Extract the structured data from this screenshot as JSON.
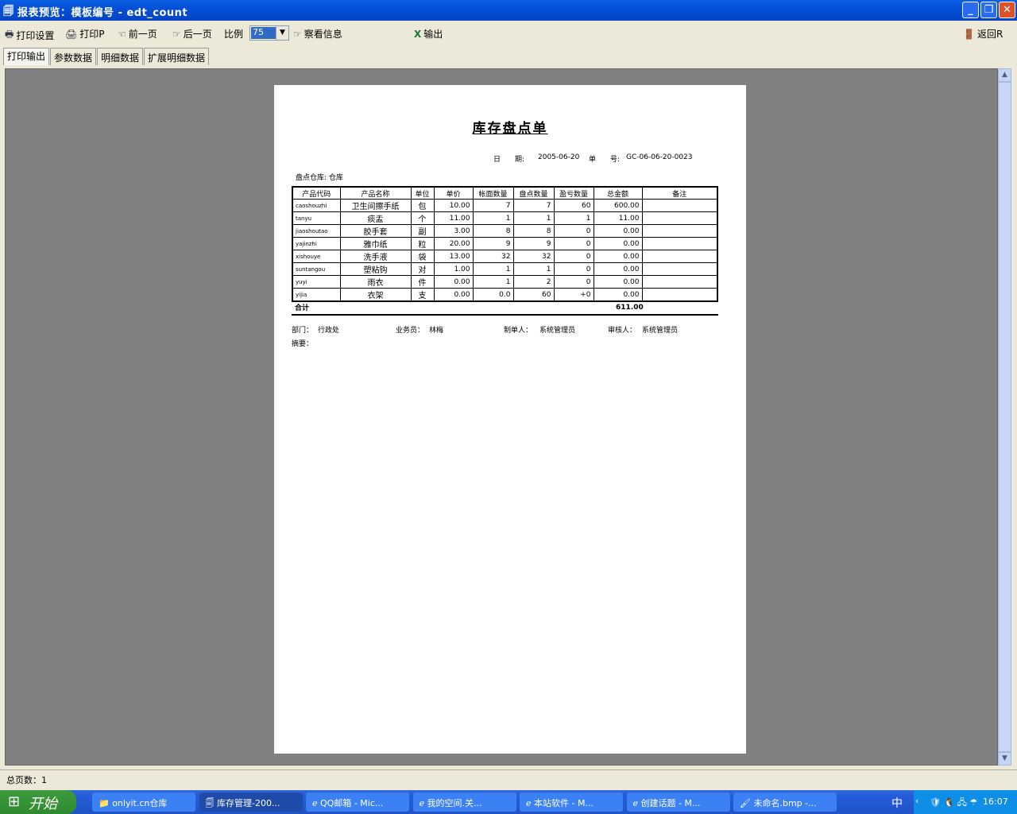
{
  "window": {
    "title": "报表预览：模板编号 - edt_count"
  },
  "toolbar": {
    "print_setup": "打印设置",
    "print": "打印P",
    "prev": "前一页",
    "next": "后一页",
    "scale_label": "比例",
    "scale_value": "75",
    "view_info": "察看信息",
    "export": "输出",
    "back": "返回R"
  },
  "tabs": [
    "打印输出",
    "参数数据",
    "明细数据",
    "扩展明细数据"
  ],
  "report": {
    "title": "库存盘点单",
    "date_label": "日　　期:",
    "date": "2005-06-20",
    "no_label": "单　　号:",
    "no": "GC-06-06-20-0023",
    "warehouse": "盘点仓库: 仓库",
    "columns": [
      "产品代码",
      "产品名称",
      "单位",
      "单价",
      "帐面数量",
      "盘点数量",
      "盈亏数量",
      "总金额",
      "备注"
    ],
    "rows": [
      [
        "caoshouzhi",
        "卫生间擦手纸",
        "包",
        "10.00",
        "7",
        "7",
        "60",
        "600.00",
        ""
      ],
      [
        "tanyu",
        "痰盂",
        "个",
        "11.00",
        "1",
        "1",
        "1",
        "11.00",
        ""
      ],
      [
        "jiaoshoutao",
        "胶手套",
        "副",
        "3.00",
        "8",
        "8",
        "0",
        "0.00",
        ""
      ],
      [
        "yajinzhi",
        "雅巾纸",
        "粒",
        "20.00",
        "9",
        "9",
        "0",
        "0.00",
        ""
      ],
      [
        "xishouye",
        "洗手液",
        "袋",
        "13.00",
        "32",
        "32",
        "0",
        "0.00",
        ""
      ],
      [
        "suntangou",
        "塑粘钩",
        "对",
        "1.00",
        "1",
        "1",
        "0",
        "0.00",
        ""
      ],
      [
        "yuyi",
        "雨衣",
        "件",
        "0.00",
        "1",
        "2",
        "0",
        "0.00",
        ""
      ],
      [
        "yijia",
        "衣架",
        "支",
        "0.00",
        "0.0",
        "60",
        "+0",
        "0.00",
        ""
      ]
    ],
    "total_label": "合计",
    "total": "611.00",
    "dept_label": "部门：",
    "dept": "行政处",
    "clerk_label": "业务员：",
    "clerk": "林梅",
    "maker_label": "制单人：",
    "maker": "系统管理员",
    "auditor_label": "审核人：",
    "auditor": "系统管理员",
    "summary_label": "摘要："
  },
  "status": {
    "pages": "总页数：1"
  },
  "taskbar": {
    "start": "开始",
    "tasks": [
      "onlyit.cn仓库",
      "库存管理-200...",
      "QQ邮箱 - Mic...",
      "我的空间.关...",
      "本站软件 - M...",
      "创建话题 - M...",
      "未命名.bmp -..."
    ],
    "ime": "中",
    "clock": "16:07"
  }
}
